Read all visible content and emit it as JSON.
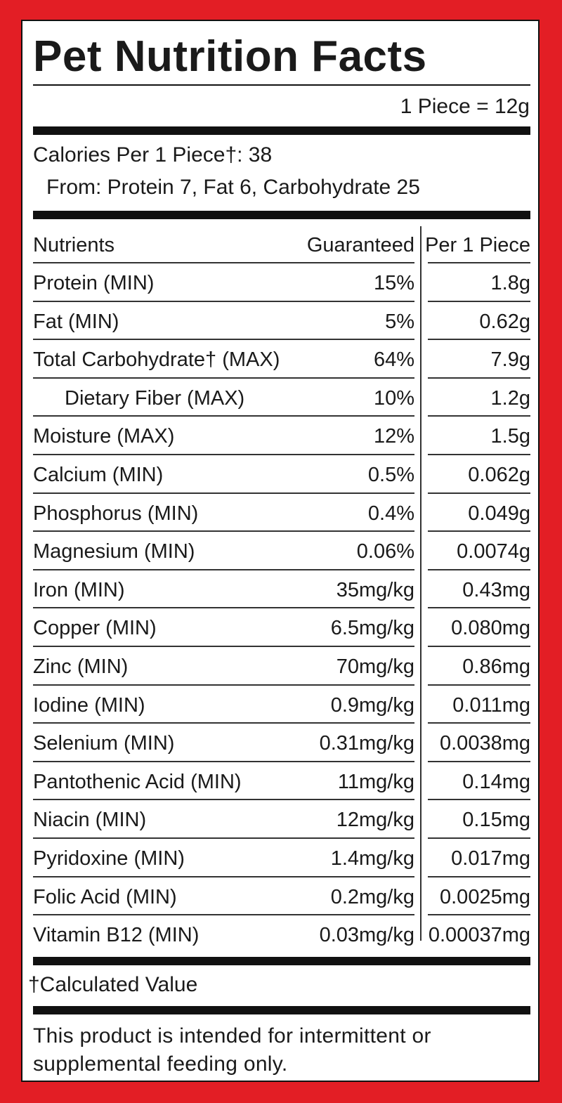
{
  "title": "Pet Nutrition Facts",
  "serving": "1 Piece = 12g",
  "calories": "Calories Per 1 Piece†: 38",
  "calories_from": "From: Protein 7, Fat 6, Carbohydrate 25",
  "table": {
    "header": [
      "Nutrients",
      "Guaranteed",
      "Per 1 Piece"
    ],
    "rows": [
      [
        "Protein (MIN)",
        "15%",
        "1.8g"
      ],
      [
        "Fat (MIN)",
        "5%",
        "0.62g"
      ],
      [
        "Total Carbohydrate† (MAX)",
        "64%",
        "7.9g"
      ],
      [
        "Dietary Fiber (MAX)",
        "10%",
        "1.2g"
      ],
      [
        "Moisture (MAX)",
        "12%",
        "1.5g"
      ],
      [
        "Calcium (MIN)",
        "0.5%",
        "0.062g"
      ],
      [
        "Phosphorus (MIN)",
        "0.4%",
        "0.049g"
      ],
      [
        "Magnesium (MIN)",
        "0.06%",
        "0.0074g"
      ],
      [
        "Iron (MIN)",
        "35mg/kg",
        "0.43mg"
      ],
      [
        "Copper (MIN)",
        "6.5mg/kg",
        "0.080mg"
      ],
      [
        "Zinc (MIN)",
        "70mg/kg",
        "0.86mg"
      ],
      [
        "Iodine (MIN)",
        "0.9mg/kg",
        "0.011mg"
      ],
      [
        "Selenium (MIN)",
        "0.31mg/kg",
        "0.0038mg"
      ],
      [
        "Pantothenic Acid (MIN)",
        "11mg/kg",
        "0.14mg"
      ],
      [
        "Niacin (MIN)",
        "12mg/kg",
        "0.15mg"
      ],
      [
        "Pyridoxine (MIN)",
        "1.4mg/kg",
        "0.017mg"
      ],
      [
        "Folic Acid (MIN)",
        "0.2mg/kg",
        "0.0025mg"
      ],
      [
        "Vitamin B12 (MIN)",
        "0.03mg/kg",
        "0.00037mg"
      ]
    ]
  },
  "footnote": "†Calculated Value",
  "note": "This product is intended for intermittent or supplemental feeding only."
}
